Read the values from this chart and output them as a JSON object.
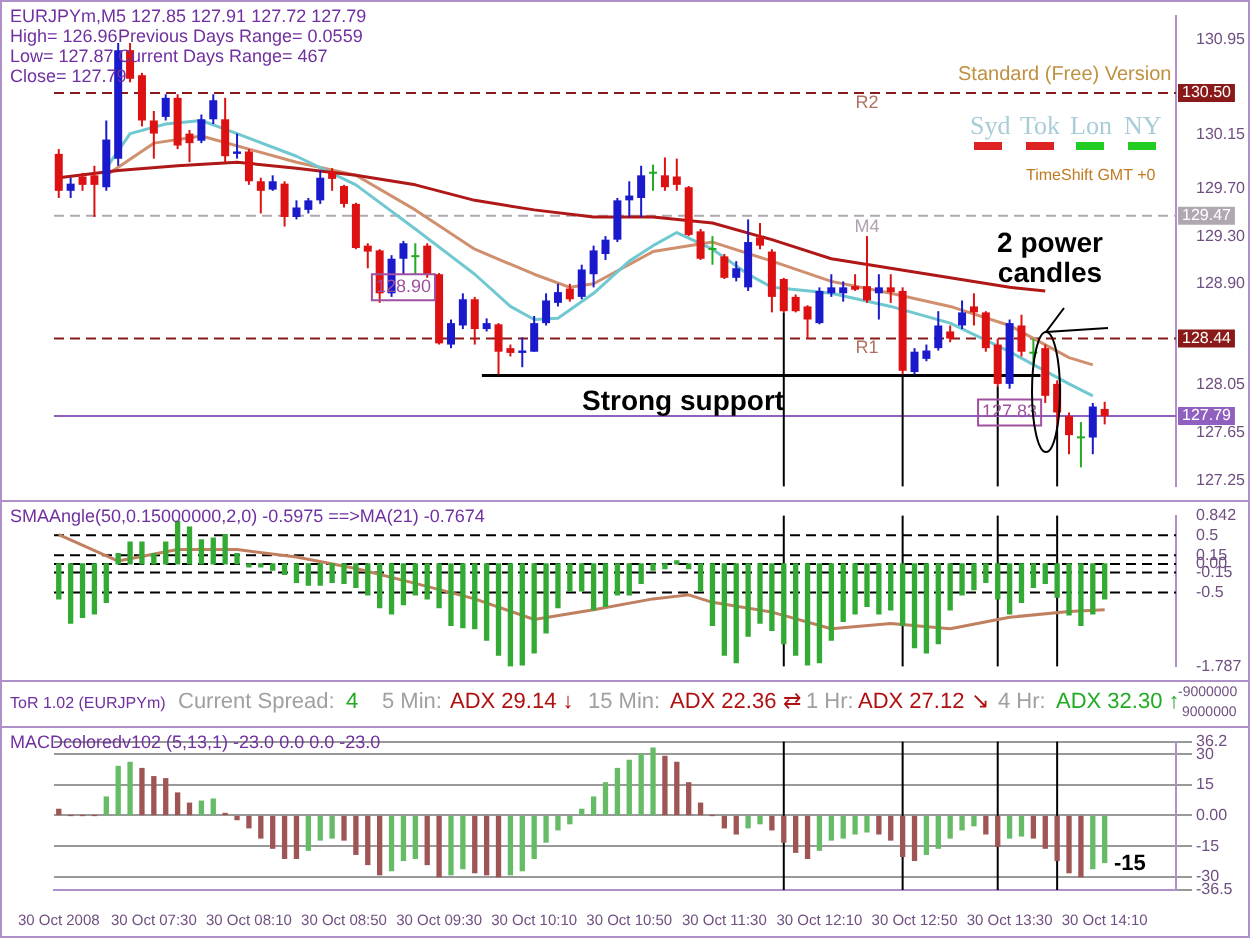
{
  "chart_data": [
    {
      "type": "candlestick",
      "x": [
        "2008-10-30T06:50",
        "2008-10-30T06:55",
        "2008-10-30T07:00",
        "2008-10-30T07:05",
        "2008-10-30T07:10",
        "2008-10-30T07:15",
        "2008-10-30T07:20",
        "2008-10-30T07:25",
        "2008-10-30T07:30",
        "2008-10-30T07:35",
        "2008-10-30T07:40",
        "2008-10-30T07:45",
        "2008-10-30T07:50",
        "2008-10-30T07:55",
        "2008-10-30T08:00",
        "2008-10-30T08:05",
        "2008-10-30T08:10",
        "2008-10-30T08:15",
        "2008-10-30T08:20",
        "2008-10-30T08:25",
        "2008-10-30T08:30",
        "2008-10-30T08:35",
        "2008-10-30T08:40",
        "2008-10-30T08:45",
        "2008-10-30T08:50",
        "2008-10-30T08:55",
        "2008-10-30T09:00",
        "2008-10-30T09:05",
        "2008-10-30T09:10",
        "2008-10-30T09:15",
        "2008-10-30T09:20",
        "2008-10-30T09:25",
        "2008-10-30T09:30",
        "2008-10-30T09:35",
        "2008-10-30T09:40",
        "2008-10-30T09:45",
        "2008-10-30T09:50",
        "2008-10-30T09:55",
        "2008-10-30T10:00",
        "2008-10-30T10:05",
        "2008-10-30T10:10",
        "2008-10-30T10:15",
        "2008-10-30T10:20",
        "2008-10-30T10:25",
        "2008-10-30T10:30",
        "2008-10-30T10:35",
        "2008-10-30T10:40",
        "2008-10-30T10:45",
        "2008-10-30T10:50",
        "2008-10-30T10:55",
        "2008-10-30T11:00",
        "2008-10-30T11:05",
        "2008-10-30T11:10",
        "2008-10-30T11:15",
        "2008-10-30T11:20",
        "2008-10-30T11:25",
        "2008-10-30T11:30",
        "2008-10-30T11:35",
        "2008-10-30T11:40",
        "2008-10-30T11:45",
        "2008-10-30T11:50",
        "2008-10-30T11:55",
        "2008-10-30T12:00",
        "2008-10-30T12:05",
        "2008-10-30T12:10",
        "2008-10-30T12:15",
        "2008-10-30T12:20",
        "2008-10-30T12:25",
        "2008-10-30T12:30",
        "2008-10-30T12:35",
        "2008-10-30T12:40",
        "2008-10-30T12:45",
        "2008-10-30T12:50",
        "2008-10-30T12:55",
        "2008-10-30T13:00",
        "2008-10-30T13:05",
        "2008-10-30T13:10",
        "2008-10-30T13:15",
        "2008-10-30T13:20",
        "2008-10-30T13:25",
        "2008-10-30T13:30",
        "2008-10-30T13:35",
        "2008-10-30T13:40",
        "2008-10-30T13:45",
        "2008-10-30T13:50",
        "2008-10-30T13:55",
        "2008-10-30T14:00",
        "2008-10-30T14:05",
        "2008-10-30T14:10"
      ],
      "ohlc": [
        [
          129.99,
          130.03,
          129.62,
          129.68
        ],
        [
          129.68,
          129.79,
          129.62,
          129.74
        ],
        [
          129.8,
          129.83,
          129.68,
          129.73
        ],
        [
          129.81,
          129.89,
          129.46,
          129.73
        ],
        [
          129.71,
          130.27,
          129.68,
          130.11
        ],
        [
          129.95,
          130.92,
          129.89,
          130.86
        ],
        [
          130.86,
          130.92,
          130.59,
          130.62
        ],
        [
          130.65,
          130.67,
          130.22,
          130.27
        ],
        [
          130.27,
          130.35,
          129.95,
          130.16
        ],
        [
          130.3,
          130.49,
          130.27,
          130.46
        ],
        [
          130.46,
          130.49,
          130.03,
          130.06
        ],
        [
          130.16,
          130.19,
          129.92,
          130.08
        ],
        [
          130.1,
          130.32,
          130.08,
          130.28
        ],
        [
          130.28,
          130.49,
          130.24,
          130.44
        ],
        [
          130.28,
          130.46,
          129.92,
          129.97
        ],
        [
          129.99,
          130.16,
          129.95,
          130.01
        ],
        [
          130.01,
          130.03,
          129.73,
          129.76
        ],
        [
          129.76,
          129.79,
          129.49,
          129.68
        ],
        [
          129.69,
          129.81,
          129.68,
          129.76
        ],
        [
          129.74,
          129.76,
          129.38,
          129.46
        ],
        [
          129.46,
          129.6,
          129.44,
          129.54
        ],
        [
          129.52,
          129.62,
          129.49,
          129.6
        ],
        [
          129.6,
          129.85,
          129.57,
          129.79
        ],
        [
          129.84,
          129.87,
          129.68,
          129.78
        ],
        [
          129.72,
          129.73,
          129.54,
          129.57
        ],
        [
          129.57,
          129.58,
          129.19,
          129.2
        ],
        [
          129.22,
          129.24,
          129.03,
          129.17
        ],
        [
          129.18,
          129.19,
          128.74,
          128.82
        ],
        [
          128.82,
          129.14,
          128.79,
          129.11
        ],
        [
          129.11,
          129.26,
          128.98,
          129.24
        ],
        [
          129.13,
          129.24,
          128.98,
          129.14
        ],
        [
          129.22,
          129.24,
          128.95,
          128.98
        ],
        [
          128.98,
          128.99,
          128.39,
          128.4
        ],
        [
          128.39,
          128.6,
          128.36,
          128.57
        ],
        [
          128.55,
          128.82,
          128.52,
          128.77
        ],
        [
          128.77,
          128.79,
          128.39,
          128.52
        ],
        [
          128.52,
          128.61,
          128.5,
          128.57
        ],
        [
          128.56,
          128.57,
          128.14,
          128.33
        ],
        [
          128.36,
          128.39,
          128.29,
          128.32
        ],
        [
          128.32,
          128.45,
          128.2,
          128.34
        ],
        [
          128.33,
          128.63,
          128.33,
          128.57
        ],
        [
          128.57,
          128.82,
          128.55,
          128.76
        ],
        [
          128.74,
          128.9,
          128.71,
          128.83
        ],
        [
          128.86,
          128.9,
          128.75,
          128.77
        ],
        [
          128.79,
          129.06,
          128.77,
          129.02
        ],
        [
          128.98,
          129.22,
          128.87,
          129.18
        ],
        [
          129.15,
          129.3,
          129.1,
          129.27
        ],
        [
          129.27,
          129.62,
          129.25,
          129.6
        ],
        [
          129.6,
          129.76,
          129.46,
          129.64
        ],
        [
          129.62,
          129.89,
          129.46,
          129.81
        ],
        [
          129.83,
          129.9,
          129.68,
          129.84
        ],
        [
          129.81,
          129.96,
          129.68,
          129.71
        ],
        [
          129.8,
          129.95,
          129.68,
          129.73
        ],
        [
          129.71,
          129.72,
          129.3,
          129.31
        ],
        [
          129.34,
          129.36,
          129.1,
          129.11
        ],
        [
          129.19,
          129.3,
          129.06,
          129.2
        ],
        [
          129.13,
          129.15,
          128.94,
          128.95
        ],
        [
          128.95,
          129.09,
          128.92,
          129.03
        ],
        [
          128.87,
          129.44,
          128.84,
          129.25
        ],
        [
          129.29,
          129.41,
          129.19,
          129.22
        ],
        [
          129.17,
          129.19,
          128.66,
          128.79
        ],
        [
          128.94,
          128.95,
          128.66,
          128.67
        ],
        [
          128.79,
          128.81,
          128.66,
          128.67
        ],
        [
          128.71,
          128.72,
          128.44,
          128.6
        ],
        [
          128.57,
          128.87,
          128.56,
          128.84
        ],
        [
          128.82,
          128.98,
          128.79,
          128.87
        ],
        [
          128.82,
          128.92,
          128.75,
          128.87
        ],
        [
          128.88,
          128.98,
          128.84,
          128.85
        ],
        [
          128.88,
          129.3,
          128.74,
          128.76
        ],
        [
          128.82,
          128.98,
          128.6,
          128.87
        ],
        [
          128.87,
          128.98,
          128.74,
          128.83
        ],
        [
          128.84,
          128.87,
          128.14,
          128.17
        ],
        [
          128.16,
          128.36,
          128.14,
          128.33
        ],
        [
          128.27,
          128.39,
          128.25,
          128.34
        ],
        [
          128.36,
          128.67,
          128.34,
          128.55
        ],
        [
          128.5,
          128.55,
          128.41,
          128.44
        ],
        [
          128.55,
          128.76,
          128.52,
          128.66
        ],
        [
          128.71,
          128.82,
          128.55,
          128.66
        ],
        [
          128.66,
          128.67,
          128.33,
          128.36
        ],
        [
          128.39,
          128.44,
          128.04,
          128.06
        ],
        [
          128.06,
          128.6,
          128.02,
          128.57
        ],
        [
          128.55,
          128.64,
          128.29,
          128.33
        ],
        [
          128.33,
          128.44,
          128.22,
          128.33
        ],
        [
          128.36,
          128.39,
          127.9,
          127.96
        ],
        [
          128.06,
          128.09,
          127.71,
          127.82
        ],
        [
          127.79,
          127.82,
          127.47,
          127.63
        ],
        [
          127.61,
          127.74,
          127.36,
          127.62
        ],
        [
          127.61,
          127.9,
          127.47,
          127.87
        ],
        [
          127.85,
          127.91,
          127.72,
          127.79
        ]
      ],
      "colors": [
        "#dd1111",
        "#1a1acc",
        "#dd1111",
        "#dd1111",
        "#1a1acc",
        "#1a1acc",
        "#dd1111",
        "#dd1111",
        "#dd1111",
        "#1a1acc",
        "#dd1111",
        "#dd1111",
        "#1a1acc",
        "#1a1acc",
        "#dd1111",
        "#1a1acc",
        "#dd1111",
        "#dd1111",
        "#1a1acc",
        "#dd1111",
        "#1a1acc",
        "#1a1acc",
        "#1a1acc",
        "#dd1111",
        "#dd1111",
        "#dd1111",
        "#dd1111",
        "#dd1111",
        "#1a1acc",
        "#1a1acc",
        "#22aa22",
        "#dd1111",
        "#dd1111",
        "#1a1acc",
        "#1a1acc",
        "#dd1111",
        "#1a1acc",
        "#dd1111",
        "#dd1111",
        "#1a1acc",
        "#1a1acc",
        "#1a1acc",
        "#1a1acc",
        "#dd1111",
        "#1a1acc",
        "#1a1acc",
        "#1a1acc",
        "#1a1acc",
        "#1a1acc",
        "#1a1acc",
        "#22aa22",
        "#dd1111",
        "#dd1111",
        "#dd1111",
        "#dd1111",
        "#22aa22",
        "#dd1111",
        "#1a1acc",
        "#1a1acc",
        "#dd1111",
        "#dd1111",
        "#dd1111",
        "#dd1111",
        "#dd1111",
        "#1a1acc",
        "#1a1acc",
        "#1a1acc",
        "#dd1111",
        "#dd1111",
        "#1a1acc",
        "#dd1111",
        "#dd1111",
        "#1a1acc",
        "#1a1acc",
        "#1a1acc",
        "#dd1111",
        "#1a1acc",
        "#dd1111",
        "#dd1111",
        "#dd1111",
        "#1a1acc",
        "#dd1111",
        "#22aa22",
        "#dd1111",
        "#dd1111",
        "#dd1111",
        "#22aa22",
        "#1a1acc",
        "#dd1111"
      ],
      "series": [
        {
          "type": "line",
          "color": "#b01818",
          "x": [
            "2008-10-30T06:50",
            "2008-10-30T07:15",
            "2008-10-30T07:40",
            "2008-10-30T08:05",
            "2008-10-30T08:30",
            "2008-10-30T08:55",
            "2008-10-30T09:20",
            "2008-10-30T09:45",
            "2008-10-30T10:10",
            "2008-10-30T10:35",
            "2008-10-30T11:00",
            "2008-10-30T11:25",
            "2008-10-30T11:50",
            "2008-10-30T12:15",
            "2008-10-30T12:40",
            "2008-10-30T13:05",
            "2008-10-30T13:30",
            "2008-10-30T13:45"
          ],
          "values": [
            129.79,
            129.85,
            129.89,
            129.92,
            129.87,
            129.81,
            129.73,
            129.6,
            129.52,
            129.46,
            129.46,
            129.41,
            129.27,
            129.11,
            129.03,
            128.95,
            128.87,
            128.84
          ]
        },
        {
          "type": "line",
          "color": "#70c8d0",
          "x": [
            "2008-10-30T07:10",
            "2008-10-30T07:20",
            "2008-10-30T07:35",
            "2008-10-30T07:50",
            "2008-10-30T08:05",
            "2008-10-30T08:30",
            "2008-10-30T08:55",
            "2008-10-30T09:20",
            "2008-10-30T09:45",
            "2008-10-30T10:00",
            "2008-10-30T10:10",
            "2008-10-30T10:20",
            "2008-10-30T10:35",
            "2008-10-30T10:50",
            "2008-10-30T11:00",
            "2008-10-30T11:10",
            "2008-10-30T11:25",
            "2008-10-30T11:40",
            "2008-10-30T11:50",
            "2008-10-30T12:15",
            "2008-10-30T12:40",
            "2008-10-30T13:05",
            "2008-10-30T13:30",
            "2008-10-30T13:55",
            "2008-10-30T14:05"
          ],
          "values": [
            129.87,
            130.16,
            130.24,
            130.27,
            130.16,
            129.97,
            129.73,
            129.36,
            128.98,
            128.71,
            128.6,
            128.61,
            128.82,
            129.09,
            129.22,
            129.33,
            129.19,
            128.98,
            128.87,
            128.82,
            128.71,
            128.57,
            128.33,
            128.06,
            127.96
          ]
        },
        {
          "type": "line",
          "color": "#d09070",
          "x": [
            "2008-10-30T07:10",
            "2008-10-30T07:30",
            "2008-10-30T07:50",
            "2008-10-30T08:10",
            "2008-10-30T08:30",
            "2008-10-30T08:55",
            "2008-10-30T09:20",
            "2008-10-30T09:45",
            "2008-10-30T10:10",
            "2008-10-30T10:25",
            "2008-10-30T10:35",
            "2008-10-30T11:00",
            "2008-10-30T11:25",
            "2008-10-30T11:50",
            "2008-10-30T12:15",
            "2008-10-30T12:40",
            "2008-10-30T13:05",
            "2008-10-30T13:30",
            "2008-10-30T13:55",
            "2008-10-30T14:05"
          ],
          "values": [
            129.81,
            130.08,
            130.14,
            130.03,
            129.92,
            129.81,
            129.52,
            129.19,
            128.98,
            128.87,
            128.9,
            129.17,
            129.25,
            129.09,
            128.92,
            128.82,
            128.71,
            128.55,
            128.28,
            128.22
          ]
        },
        {
          "type": "line",
          "color": "#000000",
          "x": [
            "2008-10-30T09:48",
            "2008-10-30T13:43"
          ],
          "values": [
            128.13,
            128.13
          ]
        }
      ],
      "xlim": [
        "2008-10-30T06:48",
        "2008-10-30T14:40"
      ],
      "ylim": [
        127.2,
        131.15
      ],
      "yticks": [
        130.95,
        130.15,
        {
          "value": 129.7,
          "label": "129.70"
        },
        {
          "value": 129.3,
          "label": "129.30"
        },
        {
          "value": 128.9,
          "label": "128.90"
        },
        128.05,
        127.65,
        127.25
      ],
      "tick_labels": "y",
      "ref_lines": [
        {
          "axis": "y",
          "value": 130.5,
          "label": "130.50",
          "color": "#8a1a1a",
          "line_style": "dashed"
        },
        {
          "axis": "y",
          "value": 129.47,
          "label": "129.47",
          "color": "#b0a8b0",
          "line_style": "dashed"
        },
        {
          "axis": "y",
          "value": 128.44,
          "label": "128.44",
          "color": "#8a1a1a",
          "line_style": "dashed"
        },
        {
          "axis": "y",
          "value": 127.79,
          "label": "127.79",
          "color": "#9060c0",
          "line_style": "solid"
        },
        {
          "axis": "x",
          "value": "2008-10-30T11:55",
          "color": "#000000"
        },
        {
          "axis": "x",
          "value": "2008-10-30T12:45",
          "color": "#000000"
        },
        {
          "axis": "x",
          "value": "2008-10-30T13:25",
          "color": "#000000"
        },
        {
          "axis": "x",
          "value": "2008-10-30T13:50",
          "color": "#000000"
        }
      ],
      "annotations": [
        "EURJPYm,M5  127.85 127.91 127.72 127.79",
        "High= 126.96",
        "Previous Days Range= 0.0559",
        "Low= 127.87",
        "Current Days Range= 467",
        "Close= 127.79",
        "Standard (Free) Version",
        "Syd",
        "Tok",
        "Lon",
        "NY",
        "TimeShift GMT +0",
        {
          "text": "R2",
          "x": "2008-10-30T12:30",
          "y": 130.42
        },
        {
          "text": "M4",
          "x": "2008-10-30T12:30",
          "y": 129.38
        },
        {
          "text": "R1",
          "x": "2008-10-30T12:30",
          "y": 128.36
        },
        {
          "text": "128.90",
          "x": "2008-10-30T09:15",
          "y": 128.87
        },
        {
          "text": "127.83",
          "x": "2008-10-30T13:30",
          "y": 127.82
        },
        "2 power candles",
        "Strong support"
      ]
    },
    {
      "type": "bar",
      "title": "SMAAngle(50,0.15000000,2,0) -0.5975 ==>MA(21) -0.7674",
      "x": [
        "2008-10-30T06:50",
        "2008-10-30T06:55",
        "2008-10-30T07:00",
        "2008-10-30T07:05",
        "2008-10-30T07:10",
        "2008-10-30T07:15",
        "2008-10-30T07:20",
        "2008-10-30T07:25",
        "2008-10-30T07:30",
        "2008-10-30T07:35",
        "2008-10-30T07:40",
        "2008-10-30T07:45",
        "2008-10-30T07:50",
        "2008-10-30T07:55",
        "2008-10-30T08:00",
        "2008-10-30T08:05",
        "2008-10-30T08:10",
        "2008-10-30T08:15",
        "2008-10-30T08:20",
        "2008-10-30T08:25",
        "2008-10-30T08:30",
        "2008-10-30T08:35",
        "2008-10-30T08:40",
        "2008-10-30T08:45",
        "2008-10-30T08:50",
        "2008-10-30T08:55",
        "2008-10-30T09:00",
        "2008-10-30T09:05",
        "2008-10-30T09:10",
        "2008-10-30T09:15",
        "2008-10-30T09:20",
        "2008-10-30T09:25",
        "2008-10-30T09:30",
        "2008-10-30T09:35",
        "2008-10-30T09:40",
        "2008-10-30T09:45",
        "2008-10-30T09:50",
        "2008-10-30T09:55",
        "2008-10-30T10:00",
        "2008-10-30T10:05",
        "2008-10-30T10:10",
        "2008-10-30T10:15",
        "2008-10-30T10:20",
        "2008-10-30T10:25",
        "2008-10-30T10:30",
        "2008-10-30T10:35",
        "2008-10-30T10:40",
        "2008-10-30T10:45",
        "2008-10-30T10:50",
        "2008-10-30T10:55",
        "2008-10-30T11:00",
        "2008-10-30T11:05",
        "2008-10-30T11:10",
        "2008-10-30T11:15",
        "2008-10-30T11:20",
        "2008-10-30T11:25",
        "2008-10-30T11:30",
        "2008-10-30T11:35",
        "2008-10-30T11:40",
        "2008-10-30T11:45",
        "2008-10-30T11:50",
        "2008-10-30T11:55",
        "2008-10-30T12:00",
        "2008-10-30T12:05",
        "2008-10-30T12:10",
        "2008-10-30T12:15",
        "2008-10-30T12:20",
        "2008-10-30T12:25",
        "2008-10-30T12:30",
        "2008-10-30T12:35",
        "2008-10-30T12:40",
        "2008-10-30T12:45",
        "2008-10-30T12:50",
        "2008-10-30T12:55",
        "2008-10-30T13:00",
        "2008-10-30T13:05",
        "2008-10-30T13:10",
        "2008-10-30T13:15",
        "2008-10-30T13:20",
        "2008-10-30T13:25",
        "2008-10-30T13:30",
        "2008-10-30T13:35",
        "2008-10-30T13:40",
        "2008-10-30T13:45",
        "2008-10-30T13:50",
        "2008-10-30T13:55",
        "2008-10-30T14:00",
        "2008-10-30T14:05",
        "2008-10-30T14:10"
      ],
      "series": [
        {
          "type": "bar",
          "color": "#33aa33",
          "values": [
            -0.61,
            -1.03,
            -0.93,
            -0.87,
            -0.67,
            0.18,
            0.38,
            0.38,
            0.18,
            0.38,
            0.74,
            0.64,
            0.42,
            0.45,
            0.51,
            0.18,
            -0.05,
            -0.05,
            -0.11,
            -0.18,
            -0.32,
            -0.37,
            -0.37,
            -0.32,
            -0.34,
            -0.41,
            -0.54,
            -0.76,
            -0.87,
            -0.71,
            -0.54,
            -0.61,
            -0.76,
            -1.07,
            -1.11,
            -1.13,
            -1.33,
            -1.59,
            -1.78,
            -1.76,
            -1.55,
            -1.2,
            -0.76,
            -0.47,
            -0.47,
            -0.8,
            -0.74,
            -0.54,
            -0.54,
            -0.34,
            -0.11,
            -0.08,
            0.05,
            -0.08,
            -0.47,
            -1.07,
            -1.59,
            -1.72,
            -1.26,
            -1.03,
            -1.16,
            -1.39,
            -1.59,
            -1.76,
            -1.72,
            -1.33,
            -1,
            -0.87,
            -0.74,
            -0.87,
            -0.8,
            -1.07,
            -1.46,
            -1.55,
            -1.39,
            -0.8,
            -0.54,
            -0.45,
            -0.32,
            -0.61,
            -0.87,
            -0.67,
            -0.41,
            -0.34,
            -0.58,
            -0.89,
            -1.07,
            -0.87,
            -0.61
          ]
        },
        {
          "type": "line",
          "color": "#c08060",
          "x": [
            "2008-10-30T06:50",
            "2008-10-30T07:15",
            "2008-10-30T07:40",
            "2008-10-30T08:05",
            "2008-10-30T08:30",
            "2008-10-30T08:55",
            "2008-10-30T09:20",
            "2008-10-30T09:45",
            "2008-10-30T10:10",
            "2008-10-30T10:35",
            "2008-10-30T11:00",
            "2008-10-30T11:15",
            "2008-10-30T11:25",
            "2008-10-30T11:50",
            "2008-10-30T12:15",
            "2008-10-30T12:40",
            "2008-10-30T13:05",
            "2008-10-30T13:30",
            "2008-10-30T13:55",
            "2008-10-30T14:10"
          ],
          "values": [
            0.51,
            0.05,
            0.25,
            0.25,
            0.12,
            -0.08,
            -0.34,
            -0.61,
            -0.97,
            -0.8,
            -0.61,
            -0.54,
            -0.67,
            -0.84,
            -1.13,
            -1.04,
            -1.13,
            -0.93,
            -0.83,
            -0.8
          ]
        }
      ],
      "xlim": [
        "2008-10-30T06:48",
        "2008-10-30T14:40"
      ],
      "ylim": [
        -1.787,
        0.842
      ],
      "yticks": [
        0.842,
        0.5,
        0.15,
        {
          "value": 0,
          "label": "0.00"
        },
        -0.15,
        -0.5,
        -1.787
      ],
      "tick_labels": "y",
      "ref_lines": [
        {
          "axis": "y",
          "value": 0.5,
          "color": "#000000",
          "line_style": "dashed"
        },
        {
          "axis": "y",
          "value": 0.15,
          "color": "#000000",
          "line_style": "dashed"
        },
        {
          "axis": "y",
          "value": 0,
          "color": "#000000",
          "line_style": "dashed"
        },
        {
          "axis": "y",
          "value": -0.15,
          "color": "#000000",
          "line_style": "dashed"
        },
        {
          "axis": "y",
          "value": -0.5,
          "color": "#000000",
          "line_style": "dashed"
        },
        {
          "axis": "x",
          "value": "2008-10-30T11:55",
          "color": "#000000"
        },
        {
          "axis": "x",
          "value": "2008-10-30T12:45",
          "color": "#000000"
        },
        {
          "axis": "x",
          "value": "2008-10-30T13:25",
          "color": "#000000"
        },
        {
          "axis": "x",
          "value": "2008-10-30T13:50",
          "color": "#000000"
        }
      ]
    },
    {
      "type": "other",
      "annotations": [
        "ToR 1.02 (EURJPYm)",
        "Current Spread:",
        "4",
        "5 Min:",
        "ADX 29.14 ↓",
        "15 Min:",
        "ADX 22.36 ⇄",
        "1 Hr:",
        "ADX 27.12 ↘",
        "4 Hr:",
        "ADX 32.30 ↑",
        "-9000000",
        "9000000"
      ]
    },
    {
      "type": "bar",
      "title": "MACDcoloredv102 (5,13,1) -23.0 0.0 0.0 -23.0",
      "x": [
        "2008-10-30T06:50",
        "2008-10-30T06:55",
        "2008-10-30T07:00",
        "2008-10-30T07:05",
        "2008-10-30T07:10",
        "2008-10-30T07:15",
        "2008-10-30T07:20",
        "2008-10-30T07:25",
        "2008-10-30T07:30",
        "2008-10-30T07:35",
        "2008-10-30T07:40",
        "2008-10-30T07:45",
        "2008-10-30T07:50",
        "2008-10-30T07:55",
        "2008-10-30T08:00",
        "2008-10-30T08:05",
        "2008-10-30T08:10",
        "2008-10-30T08:15",
        "2008-10-30T08:20",
        "2008-10-30T08:25",
        "2008-10-30T08:30",
        "2008-10-30T08:35",
        "2008-10-30T08:40",
        "2008-10-30T08:45",
        "2008-10-30T08:50",
        "2008-10-30T08:55",
        "2008-10-30T09:00",
        "2008-10-30T09:05",
        "2008-10-30T09:10",
        "2008-10-30T09:15",
        "2008-10-30T09:20",
        "2008-10-30T09:25",
        "2008-10-30T09:30",
        "2008-10-30T09:35",
        "2008-10-30T09:40",
        "2008-10-30T09:45",
        "2008-10-30T09:50",
        "2008-10-30T09:55",
        "2008-10-30T10:00",
        "2008-10-30T10:05",
        "2008-10-30T10:10",
        "2008-10-30T10:15",
        "2008-10-30T10:20",
        "2008-10-30T10:25",
        "2008-10-30T10:30",
        "2008-10-30T10:35",
        "2008-10-30T10:40",
        "2008-10-30T10:45",
        "2008-10-30T10:50",
        "2008-10-30T10:55",
        "2008-10-30T11:00",
        "2008-10-30T11:05",
        "2008-10-30T11:10",
        "2008-10-30T11:15",
        "2008-10-30T11:20",
        "2008-10-30T11:25",
        "2008-10-30T11:30",
        "2008-10-30T11:35",
        "2008-10-30T11:40",
        "2008-10-30T11:45",
        "2008-10-30T11:50",
        "2008-10-30T11:55",
        "2008-10-30T12:00",
        "2008-10-30T12:05",
        "2008-10-30T12:10",
        "2008-10-30T12:15",
        "2008-10-30T12:20",
        "2008-10-30T12:25",
        "2008-10-30T12:30",
        "2008-10-30T12:35",
        "2008-10-30T12:40",
        "2008-10-30T12:45",
        "2008-10-30T12:50",
        "2008-10-30T12:55",
        "2008-10-30T13:00",
        "2008-10-30T13:05",
        "2008-10-30T13:10",
        "2008-10-30T13:15",
        "2008-10-30T13:20",
        "2008-10-30T13:25",
        "2008-10-30T13:30",
        "2008-10-30T13:35",
        "2008-10-30T13:40",
        "2008-10-30T13:45",
        "2008-10-30T13:50",
        "2008-10-30T13:55",
        "2008-10-30T14:00",
        "2008-10-30T14:05",
        "2008-10-30T14:10"
      ],
      "values": [
        3,
        0,
        0,
        0,
        9,
        24,
        26,
        23,
        19,
        18,
        11,
        6,
        7,
        8,
        1,
        -2,
        -6,
        -11,
        -16,
        -21,
        -21,
        -17,
        -12,
        -11,
        -12,
        -19,
        -24,
        -29,
        -27,
        -22,
        -21,
        -24,
        -30,
        -29,
        -26,
        -28,
        -29,
        -30,
        -29,
        -27,
        -21,
        -13,
        -7,
        -4,
        3,
        9,
        16,
        23,
        27,
        30,
        33,
        29,
        26,
        16,
        6,
        0,
        -6,
        -9,
        -6,
        -4,
        -7,
        -13,
        -18,
        -21,
        -17,
        -12,
        -11,
        -9,
        -8,
        -9,
        -12,
        -20,
        -22,
        -19,
        -16,
        -11,
        -7,
        -5,
        -9,
        -15,
        -11,
        -10,
        -11,
        -16,
        -22,
        -28,
        -30,
        -26,
        -23
      ],
      "colors": [
        "#a05555",
        "#a05555",
        "#a05555",
        "#a05555",
        "#66bb66",
        "#66bb66",
        "#66bb66",
        "#a05555",
        "#a05555",
        "#a05555",
        "#a05555",
        "#a05555",
        "#66bb66",
        "#66bb66",
        "#a05555",
        "#a05555",
        "#a05555",
        "#a05555",
        "#a05555",
        "#a05555",
        "#a05555",
        "#66bb66",
        "#66bb66",
        "#66bb66",
        "#a05555",
        "#a05555",
        "#a05555",
        "#a05555",
        "#66bb66",
        "#66bb66",
        "#66bb66",
        "#a05555",
        "#a05555",
        "#66bb66",
        "#66bb66",
        "#a05555",
        "#a05555",
        "#a05555",
        "#66bb66",
        "#66bb66",
        "#66bb66",
        "#66bb66",
        "#66bb66",
        "#66bb66",
        "#66bb66",
        "#66bb66",
        "#66bb66",
        "#66bb66",
        "#66bb66",
        "#66bb66",
        "#66bb66",
        "#a05555",
        "#a05555",
        "#a05555",
        "#a05555",
        "#a05555",
        "#a05555",
        "#a05555",
        "#66bb66",
        "#66bb66",
        "#a05555",
        "#a05555",
        "#a05555",
        "#a05555",
        "#66bb66",
        "#66bb66",
        "#66bb66",
        "#66bb66",
        "#66bb66",
        "#a05555",
        "#a05555",
        "#a05555",
        "#a05555",
        "#66bb66",
        "#66bb66",
        "#66bb66",
        "#66bb66",
        "#66bb66",
        "#a05555",
        "#a05555",
        "#66bb66",
        "#66bb66",
        "#a05555",
        "#a05555",
        "#a05555",
        "#a05555",
        "#a05555",
        "#66bb66",
        "#66bb66"
      ],
      "xlim": [
        "2008-10-30T06:48",
        "2008-10-30T14:40"
      ],
      "xticks": [
        {
          "value": "2008-10-30T06:50",
          "label": "30 Oct 2008"
        },
        {
          "value": "2008-10-30T07:30",
          "label": "30 Oct 07:30"
        },
        {
          "value": "2008-10-30T08:10",
          "label": "30 Oct 08:10"
        },
        {
          "value": "2008-10-30T08:50",
          "label": "30 Oct 08:50"
        },
        {
          "value": "2008-10-30T09:30",
          "label": "30 Oct 09:30"
        },
        {
          "value": "2008-10-30T10:10",
          "label": "30 Oct 10:10"
        },
        {
          "value": "2008-10-30T10:50",
          "label": "30 Oct 10:50"
        },
        {
          "value": "2008-10-30T11:30",
          "label": "30 Oct 11:30"
        },
        {
          "value": "2008-10-30T12:10",
          "label": "30 Oct 12:10"
        },
        {
          "value": "2008-10-30T12:50",
          "label": "30 Oct 12:50"
        },
        {
          "value": "2008-10-30T13:30",
          "label": "30 Oct 13:30"
        },
        {
          "value": "2008-10-30T14:10",
          "label": "30 Oct 14:10"
        }
      ],
      "ylim": [
        -36.5,
        36.2
      ],
      "yticks": [
        36.2,
        30,
        15,
        {
          "value": 0,
          "label": "0.00"
        },
        -15,
        -30,
        -36.5
      ],
      "grid": "y",
      "ref_lines": [
        {
          "axis": "x",
          "value": "2008-10-30T11:55",
          "color": "#000000"
        },
        {
          "axis": "x",
          "value": "2008-10-30T12:45",
          "color": "#000000"
        },
        {
          "axis": "x",
          "value": "2008-10-30T13:25",
          "color": "#000000"
        },
        {
          "axis": "x",
          "value": "2008-10-30T13:50",
          "color": "#000000"
        }
      ],
      "annotations": [
        "-15"
      ]
    }
  ]
}
